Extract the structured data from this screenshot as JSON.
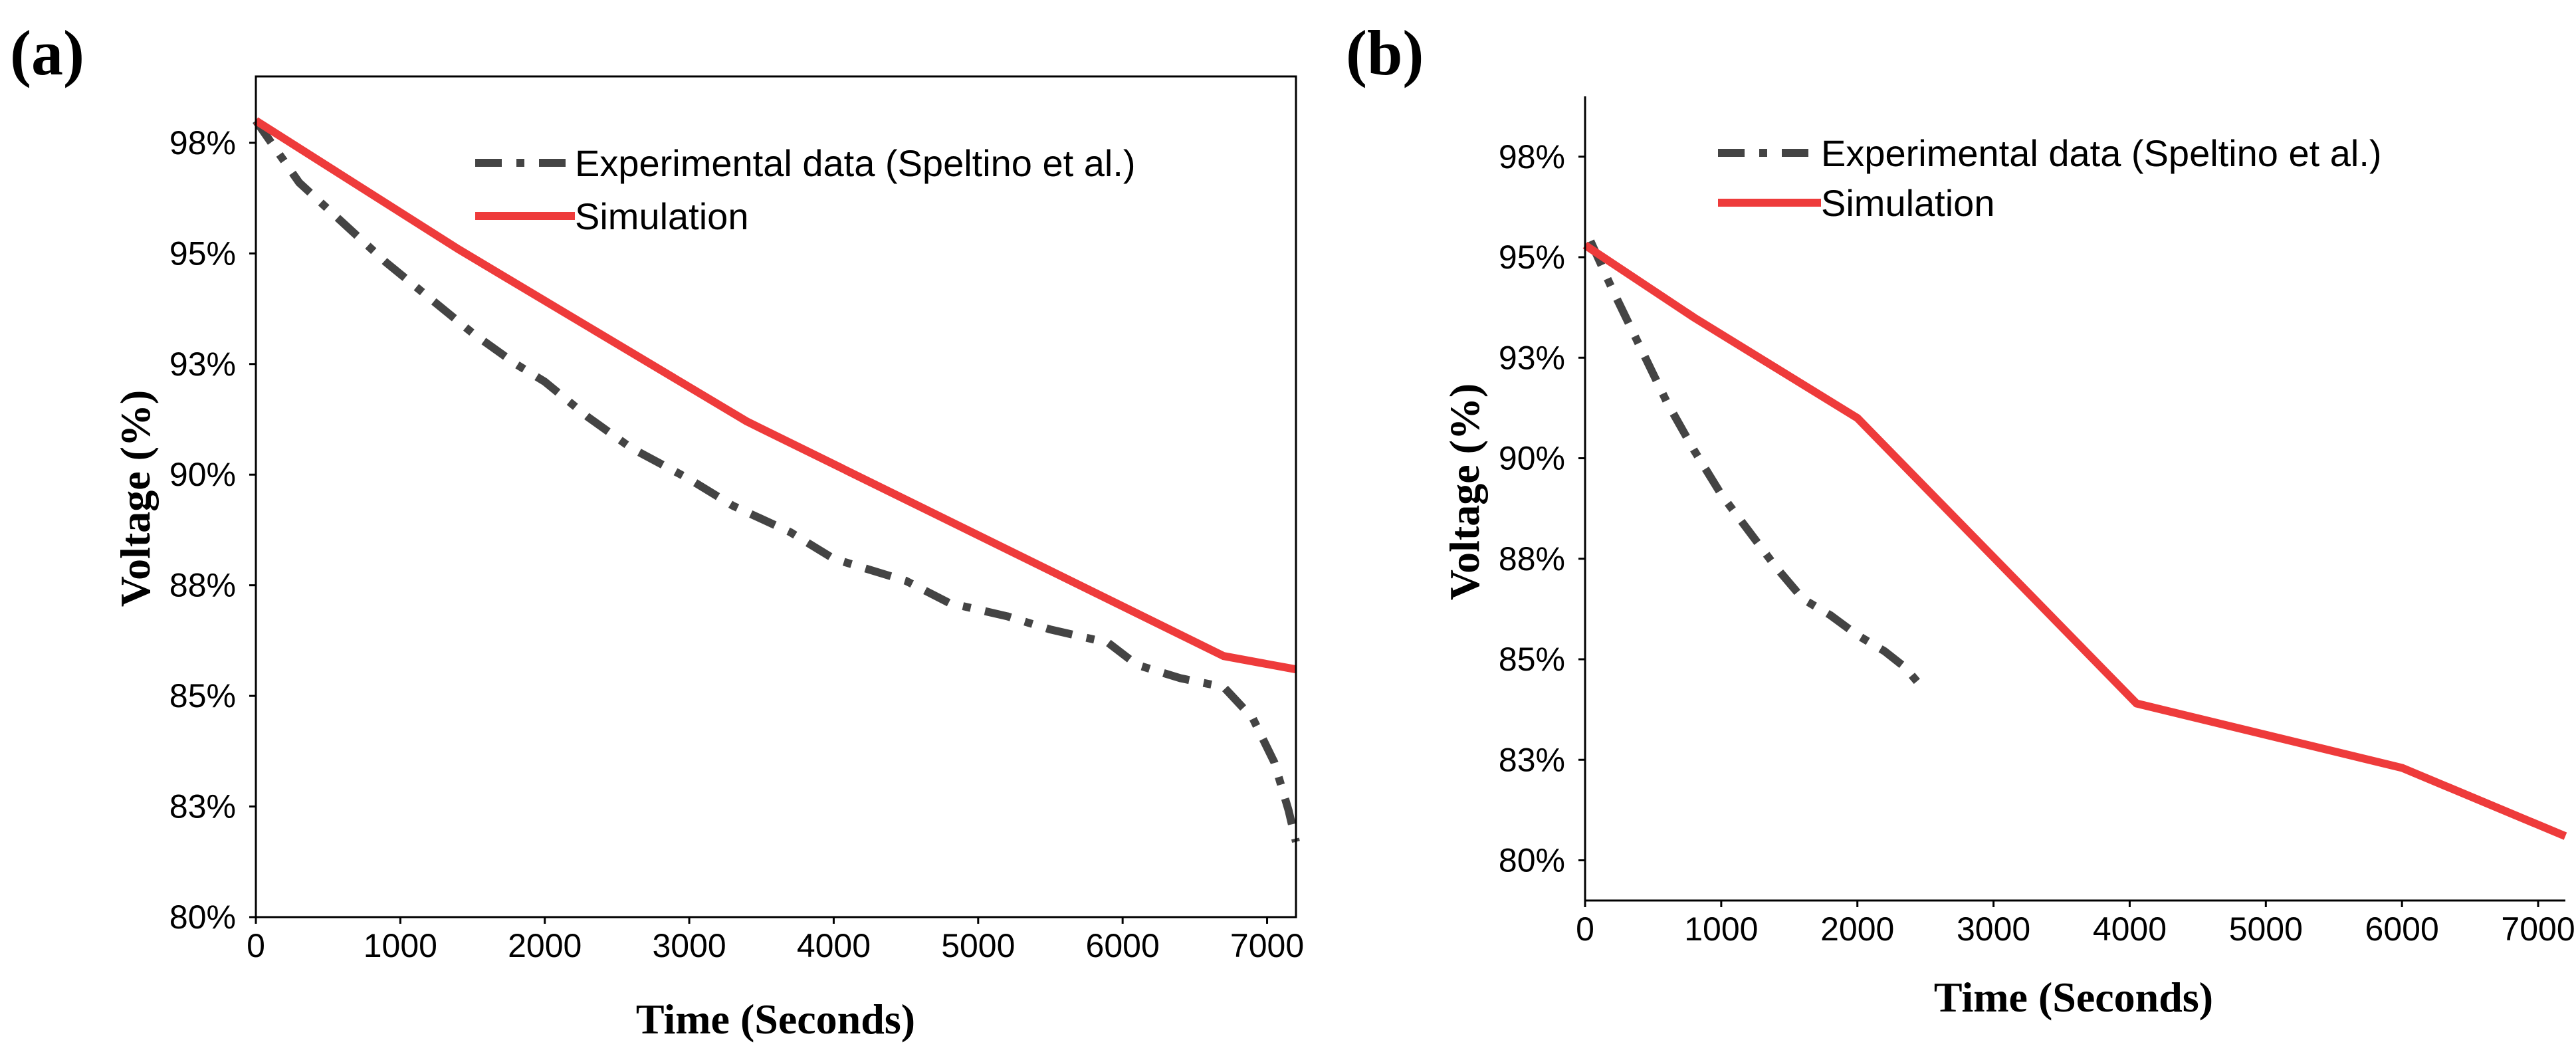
{
  "chart_data": [
    {
      "panel": "(a)",
      "type": "line",
      "xlabel": "Time (Seconds)",
      "ylabel": "Voltage (%)",
      "xlim": [
        0,
        7200
      ],
      "ylim": [
        80,
        99
      ],
      "xticks": [
        0,
        1000,
        2000,
        3000,
        4000,
        5000,
        6000,
        7000
      ],
      "xtick_labels": [
        "0",
        "1000",
        "2000",
        "3000",
        "4000",
        "5000",
        "6000",
        "7000"
      ],
      "yticks": [
        80,
        82.5,
        85,
        87.5,
        90,
        92.5,
        95,
        97.5
      ],
      "ytick_labels": [
        "80%",
        "83%",
        "85%",
        "88%",
        "90%",
        "93%",
        "95%",
        "98%"
      ],
      "legend_position": "top-right",
      "series": [
        {
          "name": "Experimental data (Speltino et al.)",
          "style": "dash-dot",
          "color": "#444444",
          "x": [
            0,
            300,
            600,
            900,
            1200,
            1500,
            1800,
            2000,
            2300,
            2600,
            3000,
            3300,
            3700,
            4000,
            4500,
            4800,
            5200,
            5500,
            5900,
            6100,
            6400,
            6700,
            6900,
            7050,
            7150,
            7200
          ],
          "y": [
            98.0,
            96.6,
            95.7,
            94.8,
            94.0,
            93.2,
            92.5,
            92.1,
            91.3,
            90.6,
            89.9,
            89.3,
            88.7,
            88.1,
            87.6,
            87.1,
            86.8,
            86.5,
            86.2,
            85.7,
            85.4,
            85.2,
            84.5,
            83.5,
            82.4,
            81.7
          ]
        },
        {
          "name": "Simulation",
          "style": "solid",
          "color": "#ee3b3b",
          "x": [
            0,
            1400,
            3400,
            6700,
            7200
          ],
          "y": [
            98.0,
            95.1,
            91.2,
            85.9,
            85.6
          ]
        }
      ]
    },
    {
      "panel": "(b)",
      "type": "line",
      "xlabel": "Time (Seconds)",
      "ylabel": "Voltage (%)",
      "xlim": [
        0,
        7200
      ],
      "ylim": [
        79,
        99
      ],
      "xticks": [
        0,
        1000,
        2000,
        3000,
        4000,
        5000,
        6000,
        7000
      ],
      "xtick_labels": [
        "0",
        "1000",
        "2000",
        "3000",
        "4000",
        "5000",
        "6000",
        "7000"
      ],
      "yticks": [
        80,
        82.5,
        85,
        87.5,
        90,
        92.5,
        95,
        97.5
      ],
      "ytick_labels": [
        "80%",
        "83%",
        "85%",
        "88%",
        "90%",
        "93%",
        "95%",
        "98%"
      ],
      "legend_position": "top-right",
      "series": [
        {
          "name": "Experimental data (Speltino et al.)",
          "style": "dash-dot",
          "color": "#444444",
          "x": [
            40,
            200,
            400,
            600,
            800,
            1000,
            1200,
            1400,
            1600,
            1800,
            2000,
            2200,
            2350,
            2450
          ],
          "y": [
            95.4,
            94.2,
            92.8,
            91.4,
            90.2,
            89.1,
            88.2,
            87.3,
            86.5,
            86.1,
            85.6,
            85.2,
            84.8,
            84.4
          ]
        },
        {
          "name": "Simulation",
          "style": "solid",
          "color": "#ee3b3b",
          "x": [
            0,
            800,
            2000,
            4050,
            6000,
            7200
          ],
          "y": [
            95.3,
            93.5,
            91.0,
            83.9,
            82.3,
            80.6
          ]
        }
      ]
    }
  ]
}
